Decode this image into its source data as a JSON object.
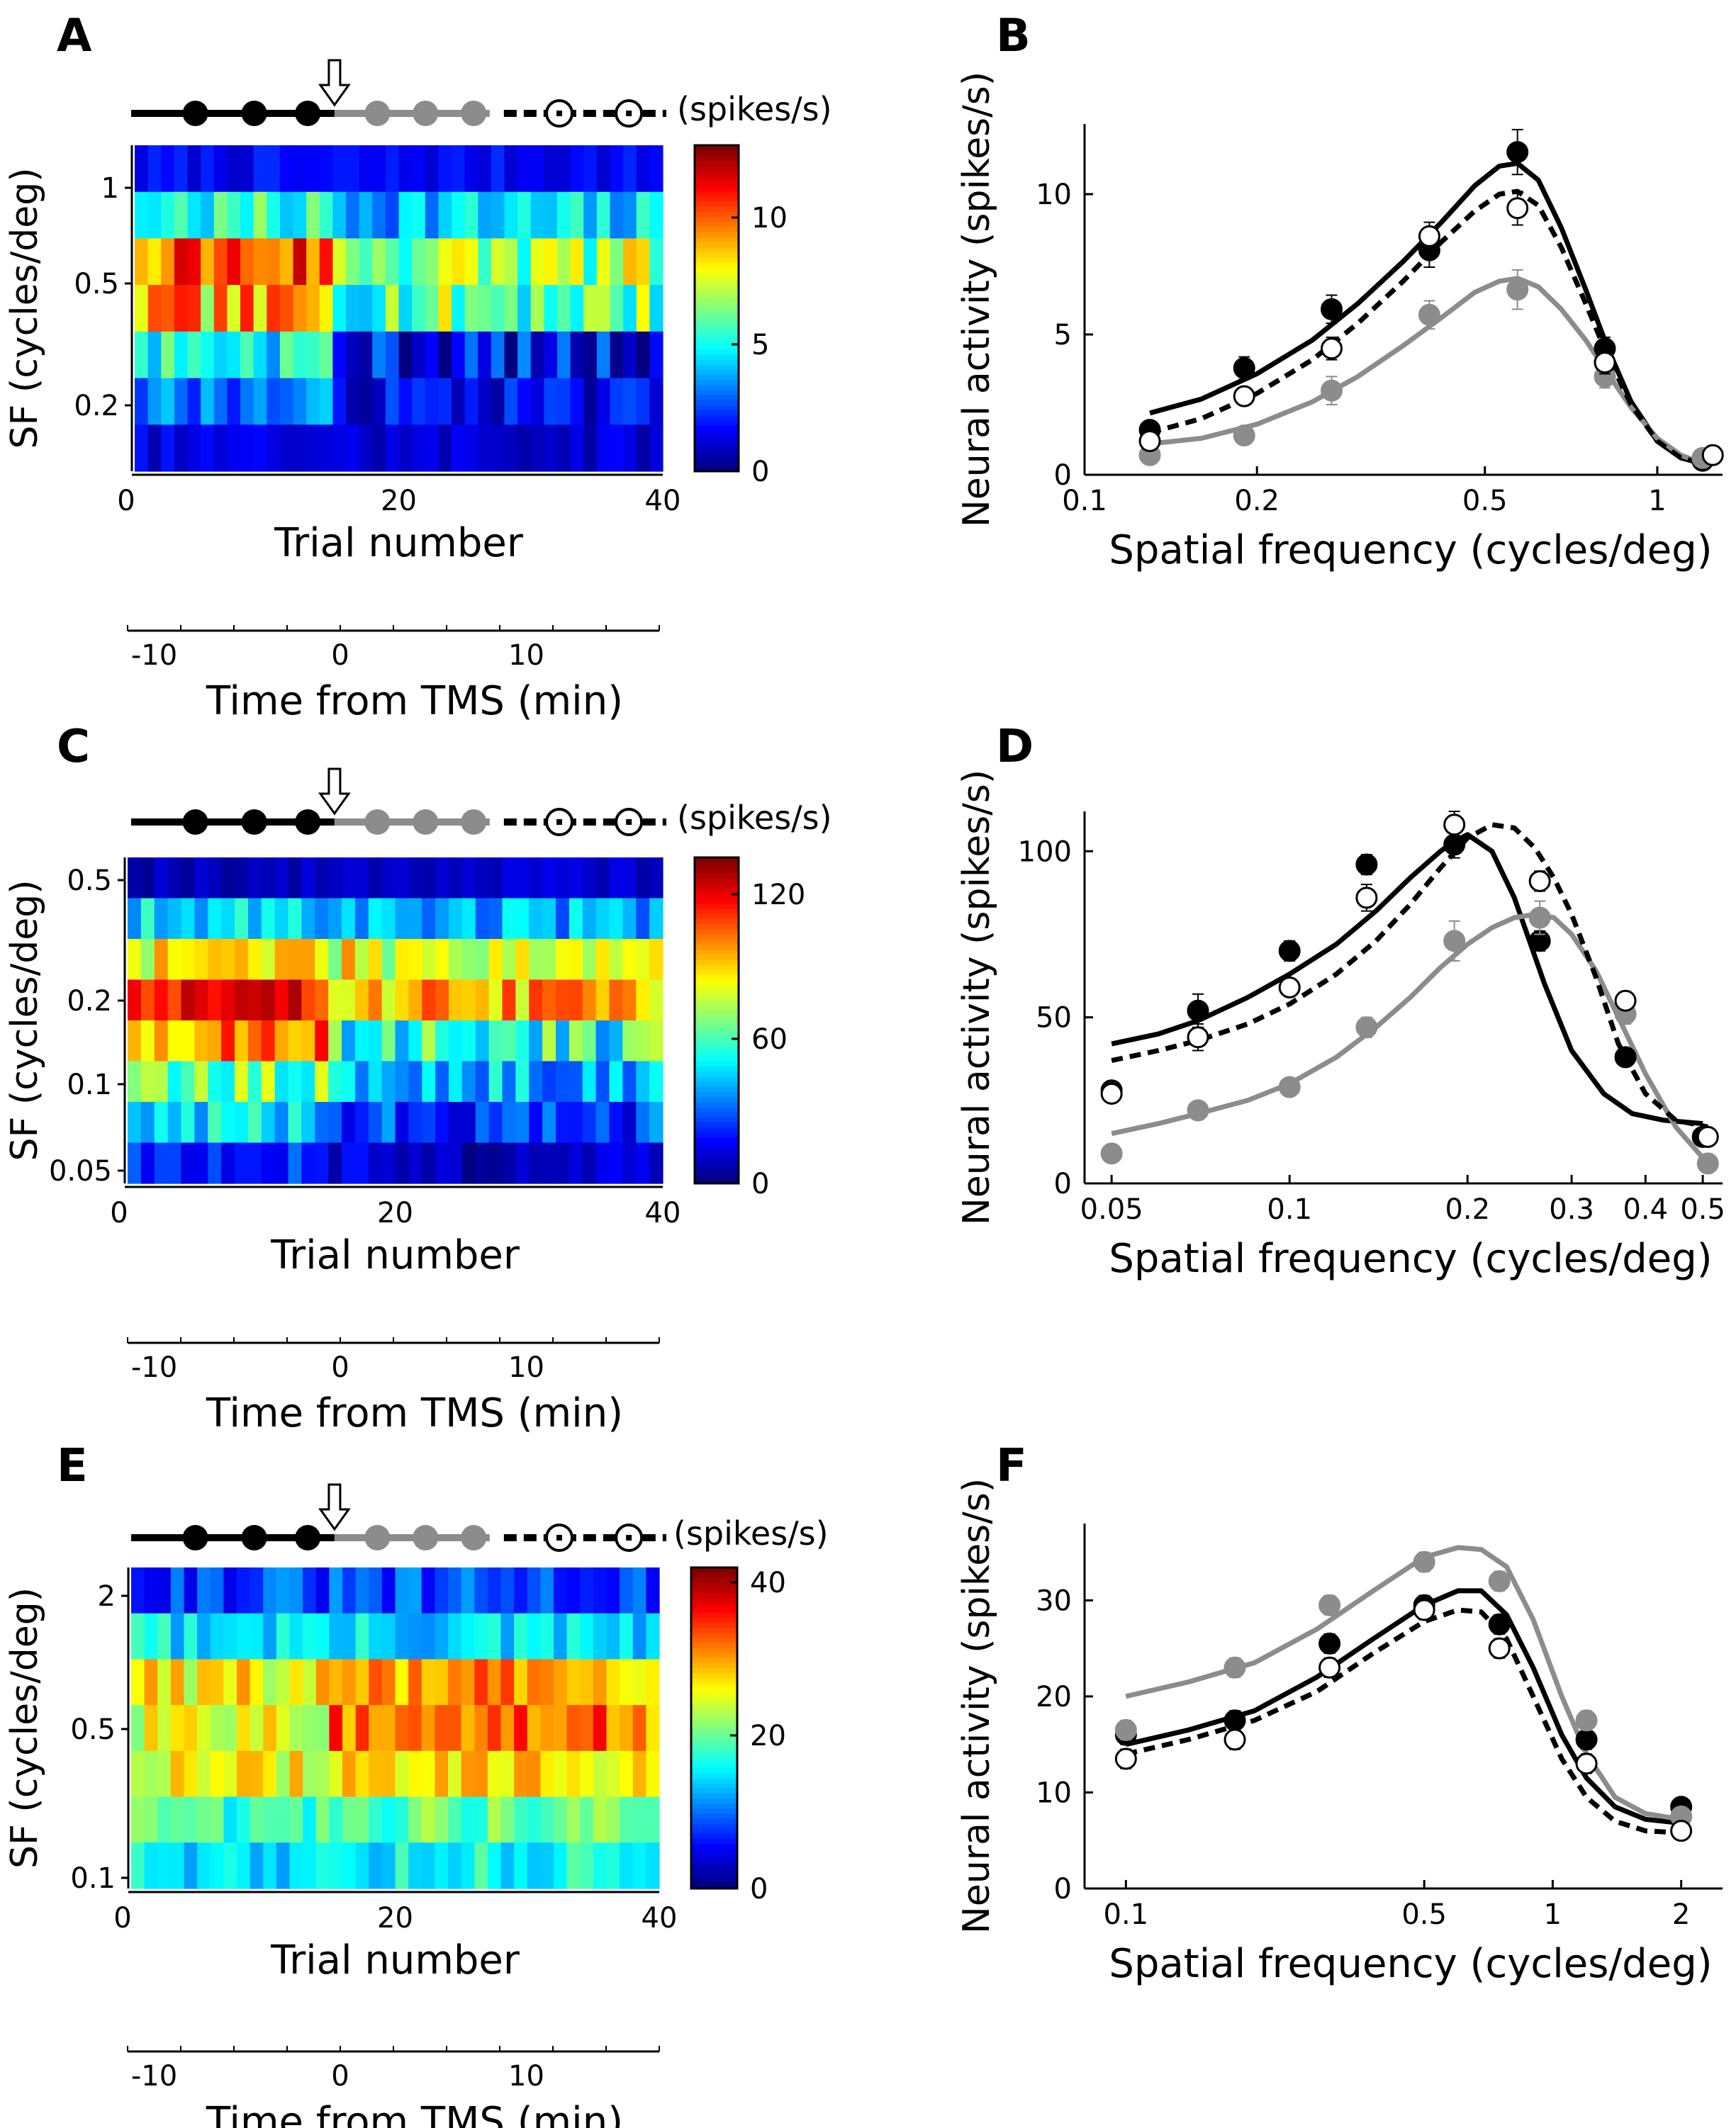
{
  "common": {
    "heatmap_ylabel": "SF (cycles/deg)",
    "heatmap_xlabel": "Trial number",
    "time_xlabel": "Time from TMS (min)",
    "colorbar_unit": "(spikes/s)",
    "curve_ylabel": "Neural activity (spikes/s)",
    "curve_xlabel": "Spatial frequency (cycles/deg)",
    "trial_ticks": [
      "0",
      "20",
      "40"
    ],
    "time_ticks": [
      "-10",
      "0",
      "10"
    ]
  },
  "chart_data": [
    {
      "panel": "A",
      "type": "heatmap",
      "ytick_labels": [
        "1",
        "0.5",
        "0.2"
      ],
      "xlim": [
        0,
        40
      ],
      "colorbar": {
        "min": 0,
        "max": 12.5,
        "ticks": [
          0,
          5,
          10
        ]
      },
      "tms_trial": 15,
      "rows": [
        {
          "level": 1.2,
          "mean": [
            1.5,
            1.5
          ],
          "noise": 0.6
        },
        {
          "level": 0.85,
          "mean": [
            5,
            4
          ],
          "noise": 1.6
        },
        {
          "level": 0.6,
          "mean": [
            10,
            6.5
          ],
          "noise": 2.2
        },
        {
          "level": 0.42,
          "mean": [
            8.5,
            6
          ],
          "noise": 2.2
        },
        {
          "level": 0.3,
          "mean": [
            5,
            1.5
          ],
          "noise": 1.8
        },
        {
          "level": 0.21,
          "mean": [
            3,
            1.5
          ],
          "noise": 1.2
        },
        {
          "level": 0.15,
          "mean": [
            1.2,
            1
          ],
          "noise": 0.6
        }
      ],
      "seed": 7
    },
    {
      "panel": "B",
      "type": "line",
      "xscale": "log",
      "xlim": [
        0.1,
        1.3
      ],
      "ylim": [
        0,
        12.5
      ],
      "xticks": [
        0.1,
        0.2,
        0.5,
        1
      ],
      "xtick_labels": [
        "0.1",
        "0.2",
        "0.5",
        "1"
      ],
      "yticks": [
        0,
        5,
        10
      ],
      "ytick_labels": [
        "0",
        "5",
        "10"
      ],
      "series": [
        {
          "style": "black-filled",
          "x": [
            0.13,
            0.19,
            0.27,
            0.4,
            0.57,
            0.81,
            1.2
          ],
          "y": [
            1.6,
            3.8,
            5.9,
            8.0,
            11.5,
            4.5,
            0.5
          ],
          "err": [
            0.2,
            0.4,
            0.5,
            0.6,
            0.8,
            0.4,
            0.1
          ],
          "fit_x": [
            0.13,
            0.16,
            0.2,
            0.25,
            0.3,
            0.36,
            0.42,
            0.48,
            0.53,
            0.57,
            0.62,
            0.68,
            0.75,
            0.82,
            0.9,
            1.0,
            1.1,
            1.2
          ],
          "fit_y": [
            2.2,
            2.7,
            3.6,
            4.8,
            6.1,
            7.6,
            9.0,
            10.3,
            11.0,
            11.1,
            10.5,
            8.8,
            6.6,
            4.5,
            2.6,
            1.2,
            0.6,
            0.4
          ]
        },
        {
          "style": "gray-filled",
          "x": [
            0.13,
            0.19,
            0.27,
            0.4,
            0.57,
            0.81,
            1.2
          ],
          "y": [
            0.7,
            1.4,
            3.0,
            5.7,
            6.6,
            3.5,
            0.6
          ],
          "err": [
            0.2,
            0.3,
            0.5,
            0.5,
            0.7,
            0.4,
            0.1
          ],
          "fit_x": [
            0.13,
            0.16,
            0.2,
            0.25,
            0.3,
            0.36,
            0.42,
            0.48,
            0.53,
            0.57,
            0.62,
            0.68,
            0.75,
            0.82,
            0.9,
            1.0,
            1.1,
            1.2
          ],
          "fit_y": [
            1.1,
            1.3,
            1.8,
            2.6,
            3.5,
            4.6,
            5.6,
            6.5,
            6.9,
            7.0,
            6.7,
            5.9,
            4.8,
            3.6,
            2.4,
            1.3,
            0.7,
            0.4
          ]
        },
        {
          "style": "open",
          "x": [
            0.13,
            0.19,
            0.27,
            0.4,
            0.57,
            0.81,
            1.25
          ],
          "y": [
            1.2,
            2.8,
            4.5,
            8.5,
            9.5,
            4.0,
            0.7
          ],
          "err": [
            0.3,
            0.3,
            0.4,
            0.5,
            0.6,
            0.4,
            0.2
          ],
          "fit_x": [
            0.13,
            0.16,
            0.2,
            0.25,
            0.3,
            0.36,
            0.42,
            0.48,
            0.53,
            0.57,
            0.62,
            0.68,
            0.75,
            0.82,
            0.9,
            1.0,
            1.1,
            1.2
          ],
          "fit_y": [
            1.5,
            2.0,
            2.9,
            4.1,
            5.4,
            6.9,
            8.3,
            9.4,
            10.0,
            10.1,
            9.6,
            8.1,
            6.1,
            4.2,
            2.5,
            1.2,
            0.6,
            0.4
          ]
        }
      ]
    },
    {
      "panel": "C",
      "type": "heatmap",
      "ytick_labels": [
        "0.5",
        "0.2",
        "0.1",
        "0.05"
      ],
      "xlim": [
        0,
        40
      ],
      "colorbar": {
        "min": 0,
        "max": 135,
        "ticks": [
          0,
          60,
          120
        ]
      },
      "tms_trial": 15,
      "rows": [
        {
          "level": 0.5,
          "mean": [
            8,
            10
          ],
          "noise": 5
        },
        {
          "level": 0.36,
          "mean": [
            45,
            40
          ],
          "noise": 14
        },
        {
          "level": 0.26,
          "mean": [
            88,
            82
          ],
          "noise": 18
        },
        {
          "level": 0.19,
          "mean": [
            115,
            95
          ],
          "noise": 18
        },
        {
          "level": 0.135,
          "mean": [
            100,
            55
          ],
          "noise": 22
        },
        {
          "level": 0.1,
          "mean": [
            65,
            40
          ],
          "noise": 18
        },
        {
          "level": 0.07,
          "mean": [
            45,
            25
          ],
          "noise": 16
        },
        {
          "level": 0.05,
          "mean": [
            22,
            10
          ],
          "noise": 10
        }
      ],
      "seed": 19
    },
    {
      "panel": "D",
      "type": "line",
      "xscale": "log",
      "xlim": [
        0.045,
        0.54
      ],
      "ylim": [
        0,
        112
      ],
      "xticks": [
        0.05,
        0.1,
        0.2,
        0.3,
        0.4,
        0.5
      ],
      "xtick_labels": [
        "0.05",
        "0.1",
        "0.2",
        "0.3",
        "0.4",
        "0.5"
      ],
      "yticks": [
        0,
        50,
        100
      ],
      "ytick_labels": [
        "0",
        "50",
        "100"
      ],
      "series": [
        {
          "style": "black-filled",
          "x": [
            0.05,
            0.07,
            0.1,
            0.135,
            0.19,
            0.265,
            0.37,
            0.5
          ],
          "y": [
            28,
            52,
            70,
            96,
            102,
            73,
            38,
            14
          ],
          "err": [
            2,
            5,
            3,
            3,
            4,
            3,
            2,
            2
          ],
          "fit_x": [
            0.05,
            0.06,
            0.07,
            0.085,
            0.1,
            0.12,
            0.14,
            0.16,
            0.18,
            0.19,
            0.2,
            0.22,
            0.24,
            0.27,
            0.3,
            0.34,
            0.38,
            0.43,
            0.5
          ],
          "fit_y": [
            42,
            45,
            49,
            56,
            63,
            72,
            82,
            92,
            100,
            103,
            105,
            100,
            86,
            60,
            40,
            27,
            21,
            19,
            18
          ]
        },
        {
          "style": "gray-filled",
          "x": [
            0.05,
            0.07,
            0.1,
            0.135,
            0.19,
            0.265,
            0.37,
            0.51
          ],
          "y": [
            9,
            22,
            29,
            47,
            73,
            80,
            51,
            6
          ],
          "err": [
            1,
            2,
            2,
            3,
            6,
            5,
            3,
            1
          ],
          "fit_x": [
            0.05,
            0.06,
            0.07,
            0.085,
            0.1,
            0.12,
            0.14,
            0.16,
            0.18,
            0.2,
            0.22,
            0.24,
            0.26,
            0.28,
            0.3,
            0.33,
            0.36,
            0.4,
            0.45,
            0.51
          ],
          "fit_y": [
            15,
            18,
            21,
            25,
            30,
            38,
            47,
            56,
            65,
            72,
            77,
            80,
            81,
            80,
            75,
            64,
            50,
            33,
            17,
            6
          ]
        },
        {
          "style": "open",
          "x": [
            0.05,
            0.07,
            0.1,
            0.135,
            0.19,
            0.265,
            0.37,
            0.51
          ],
          "y": [
            27,
            44,
            59,
            86,
            108,
            91,
            55,
            14
          ],
          "err": [
            2,
            4,
            2,
            4,
            4,
            3,
            2,
            2
          ],
          "fit_x": [
            0.05,
            0.06,
            0.07,
            0.085,
            0.1,
            0.12,
            0.14,
            0.16,
            0.18,
            0.2,
            0.22,
            0.24,
            0.26,
            0.28,
            0.3,
            0.33,
            0.36,
            0.4,
            0.45,
            0.51
          ],
          "fit_y": [
            37,
            40,
            43,
            48,
            54,
            63,
            73,
            84,
            95,
            104,
            108,
            107,
            101,
            92,
            81,
            62,
            42,
            27,
            19,
            17
          ]
        }
      ]
    },
    {
      "panel": "E",
      "type": "heatmap",
      "ytick_labels": [
        "2",
        "0.5",
        "0.1"
      ],
      "xlim": [
        0,
        40
      ],
      "colorbar": {
        "min": 0,
        "max": 42,
        "ticks": [
          0,
          20,
          40
        ]
      },
      "tms_trial": 15,
      "rows": [
        {
          "level": 2.0,
          "mean": [
            8,
            8
          ],
          "noise": 4
        },
        {
          "level": 1.2,
          "mean": [
            15,
            14
          ],
          "noise": 4
        },
        {
          "level": 0.75,
          "mean": [
            26,
            30
          ],
          "noise": 5
        },
        {
          "level": 0.5,
          "mean": [
            26,
            32
          ],
          "noise": 5
        },
        {
          "level": 0.3,
          "mean": [
            26,
            27
          ],
          "noise": 4
        },
        {
          "level": 0.18,
          "mean": [
            18,
            20
          ],
          "noise": 4
        },
        {
          "level": 0.1,
          "mean": [
            15,
            16
          ],
          "noise": 4
        }
      ],
      "seed": 31
    },
    {
      "panel": "F",
      "type": "line",
      "xscale": "log",
      "xlim": [
        0.08,
        2.5
      ],
      "ylim": [
        0,
        38
      ],
      "xticks": [
        0.1,
        0.5,
        1,
        2
      ],
      "xtick_labels": [
        "0.1",
        "0.5",
        "1",
        "2"
      ],
      "yticks": [
        0,
        10,
        20,
        30
      ],
      "ytick_labels": [
        "0",
        "10",
        "20",
        "30"
      ],
      "series": [
        {
          "style": "black-filled",
          "x": [
            0.1,
            0.18,
            0.3,
            0.5,
            0.75,
            1.2,
            2.0
          ],
          "y": [
            16,
            17.5,
            25.5,
            29.5,
            27.5,
            15.5,
            8.5
          ],
          "err": [
            1,
            1,
            1,
            1,
            1,
            1,
            0.5
          ],
          "fit_x": [
            0.1,
            0.14,
            0.2,
            0.28,
            0.38,
            0.5,
            0.6,
            0.68,
            0.78,
            0.9,
            1.05,
            1.2,
            1.4,
            1.65,
            2.0
          ],
          "fit_y": [
            15,
            16.5,
            18.5,
            22,
            26,
            29.5,
            31,
            31,
            28.5,
            23,
            16,
            11.5,
            8.5,
            7.2,
            6.8
          ]
        },
        {
          "style": "gray-filled",
          "x": [
            0.1,
            0.18,
            0.3,
            0.5,
            0.75,
            1.2,
            2.0
          ],
          "y": [
            16.5,
            23,
            29.5,
            34,
            32,
            17.5,
            7.5
          ],
          "err": [
            1,
            1,
            1,
            1,
            1,
            1,
            0.5
          ],
          "fit_x": [
            0.1,
            0.14,
            0.2,
            0.28,
            0.38,
            0.5,
            0.6,
            0.68,
            0.78,
            0.9,
            1.05,
            1.2,
            1.4,
            1.65,
            2.0
          ],
          "fit_y": [
            20,
            21.5,
            23.5,
            27,
            31,
            34.5,
            35.5,
            35.3,
            33.5,
            28,
            20,
            14,
            9.5,
            7.8,
            7.2
          ]
        },
        {
          "style": "open",
          "x": [
            0.1,
            0.18,
            0.3,
            0.5,
            0.75,
            1.2,
            2.0
          ],
          "y": [
            13.5,
            15.5,
            23,
            29,
            25,
            13,
            6
          ],
          "err": [
            1,
            1,
            1,
            1,
            1,
            1,
            0.5
          ],
          "fit_x": [
            0.1,
            0.14,
            0.2,
            0.28,
            0.38,
            0.5,
            0.6,
            0.68,
            0.78,
            0.9,
            1.05,
            1.2,
            1.4,
            1.65,
            2.0
          ],
          "fit_y": [
            14,
            15.5,
            17.5,
            20.5,
            24.5,
            27.8,
            29,
            28.8,
            26,
            20,
            13.5,
            9.5,
            7,
            6,
            5.8
          ]
        }
      ]
    }
  ]
}
